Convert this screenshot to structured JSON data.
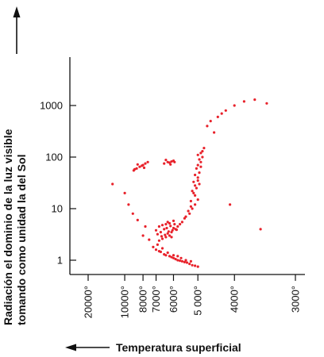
{
  "chart_data": {
    "type": "scatter",
    "title": "",
    "xlabel": "Temperatura superficial",
    "ylabel_line1": "Radiación el dominio de la luz visible",
    "ylabel_line2": "tomando como unidad la del Sol",
    "y_scale": "log",
    "x_axis_direction": "temperature decreasing to the right (reciprocal scale)",
    "xlim": [
      30000,
      2700
    ],
    "ylim": [
      0.5,
      9000
    ],
    "x_ticks": [
      {
        "value": 20000,
        "label": "20000°"
      },
      {
        "value": 10000,
        "label": "10000°"
      },
      {
        "value": 8000,
        "label": "8000°"
      },
      {
        "value": 7000,
        "label": "7000°"
      },
      {
        "value": 6000,
        "label": "6000°"
      },
      {
        "value": 5000,
        "label": "5 000°"
      },
      {
        "value": 4000,
        "label": "4000°"
      },
      {
        "value": 3000,
        "label": "3000°"
      }
    ],
    "y_ticks": [
      {
        "value": 1,
        "label": "1"
      },
      {
        "value": 10,
        "label": "10"
      },
      {
        "value": 100,
        "label": "100"
      },
      {
        "value": 1000,
        "label": "1000"
      }
    ],
    "grid": false,
    "legend": "none",
    "point_color": "#e8222b",
    "series": [
      {
        "points": [
          [
            7200,
            1.8
          ],
          [
            6800,
            1.5
          ],
          [
            6500,
            1.3
          ],
          [
            6200,
            1.2
          ],
          [
            6000,
            1.1
          ],
          [
            5800,
            1.0
          ],
          [
            5600,
            0.95
          ],
          [
            5400,
            0.9
          ],
          [
            5300,
            0.85
          ],
          [
            5200,
            0.8
          ],
          [
            5100,
            0.78
          ],
          [
            5000,
            0.75
          ],
          [
            7000,
            1.6
          ],
          [
            6700,
            1.45
          ],
          [
            6400,
            1.25
          ],
          [
            6100,
            1.15
          ],
          [
            5900,
            1.05
          ],
          [
            5700,
            0.98
          ],
          [
            5500,
            0.92
          ],
          [
            6900,
            2.0
          ],
          [
            6600,
            1.7
          ],
          [
            6300,
            1.4
          ],
          [
            6000,
            1.25
          ],
          [
            5800,
            1.2
          ],
          [
            5650,
            1.1
          ],
          [
            5450,
            1.0
          ],
          [
            5250,
            0.95
          ],
          [
            6100,
            3.5
          ],
          [
            6200,
            3.0
          ],
          [
            6400,
            2.8
          ],
          [
            6600,
            2.6
          ],
          [
            6800,
            2.4
          ],
          [
            5900,
            4.0
          ],
          [
            5800,
            4.5
          ],
          [
            6050,
            3.8
          ],
          [
            6300,
            3.3
          ],
          [
            6000,
            4.2
          ],
          [
            6150,
            4.6
          ],
          [
            6350,
            4.2
          ],
          [
            5950,
            5.0
          ],
          [
            6250,
            3.6
          ],
          [
            6450,
            3.1
          ],
          [
            6650,
            2.9
          ],
          [
            6100,
            2.8
          ],
          [
            5850,
            3.9
          ],
          [
            6500,
            4.0
          ],
          [
            6700,
            3.5
          ],
          [
            6900,
            3.2
          ],
          [
            6400,
            5.0
          ],
          [
            6300,
            5.5
          ],
          [
            6200,
            5.2
          ],
          [
            6000,
            5.8
          ],
          [
            5700,
            5.0
          ],
          [
            5600,
            5.5
          ],
          [
            6800,
            4.5
          ],
          [
            7000,
            3.8
          ],
          [
            6600,
            4.8
          ],
          [
            5300,
            8
          ],
          [
            5200,
            10
          ],
          [
            5100,
            12
          ],
          [
            5000,
            15
          ],
          [
            5150,
            20
          ],
          [
            5050,
            25
          ],
          [
            4950,
            30
          ],
          [
            5000,
            35
          ],
          [
            5100,
            18
          ],
          [
            5250,
            14
          ],
          [
            5200,
            22
          ],
          [
            5100,
            28
          ],
          [
            5000,
            40
          ],
          [
            4950,
            50
          ],
          [
            5050,
            60
          ],
          [
            5000,
            70
          ],
          [
            4900,
            80
          ],
          [
            4850,
            100
          ],
          [
            4900,
            120
          ],
          [
            4950,
            90
          ],
          [
            5000,
            110
          ],
          [
            4800,
            150
          ],
          [
            4850,
            130
          ],
          [
            4900,
            65
          ],
          [
            5100,
            45
          ],
          [
            5150,
            33
          ],
          [
            5350,
            9
          ],
          [
            5450,
            7
          ],
          [
            5500,
            6.5
          ],
          [
            5250,
            11
          ],
          [
            8000,
            70
          ],
          [
            8300,
            65
          ],
          [
            8600,
            60
          ],
          [
            8800,
            58
          ],
          [
            7800,
            75
          ],
          [
            7600,
            80
          ],
          [
            8100,
            68
          ],
          [
            8500,
            72
          ],
          [
            8900,
            55
          ],
          [
            7900,
            62
          ],
          [
            6300,
            80
          ],
          [
            6100,
            82
          ],
          [
            6200,
            78
          ],
          [
            6000,
            85
          ],
          [
            6500,
            75
          ],
          [
            6400,
            88
          ],
          [
            6150,
            72
          ],
          [
            5950,
            80
          ],
          [
            4700,
            400
          ],
          [
            4400,
            600
          ],
          [
            4200,
            800
          ],
          [
            4000,
            1000
          ],
          [
            3800,
            1200
          ],
          [
            3600,
            1300
          ],
          [
            3400,
            1100
          ],
          [
            4600,
            500
          ],
          [
            4300,
            700
          ],
          [
            4500,
            300
          ],
          [
            9000,
            8
          ],
          [
            8500,
            6
          ],
          [
            7500,
            2.5
          ],
          [
            8000,
            3
          ],
          [
            9500,
            12
          ],
          [
            7800,
            4.5
          ],
          [
            10000,
            20
          ],
          [
            12000,
            30
          ],
          [
            3500,
            4
          ],
          [
            4100,
            12
          ]
        ]
      }
    ]
  }
}
